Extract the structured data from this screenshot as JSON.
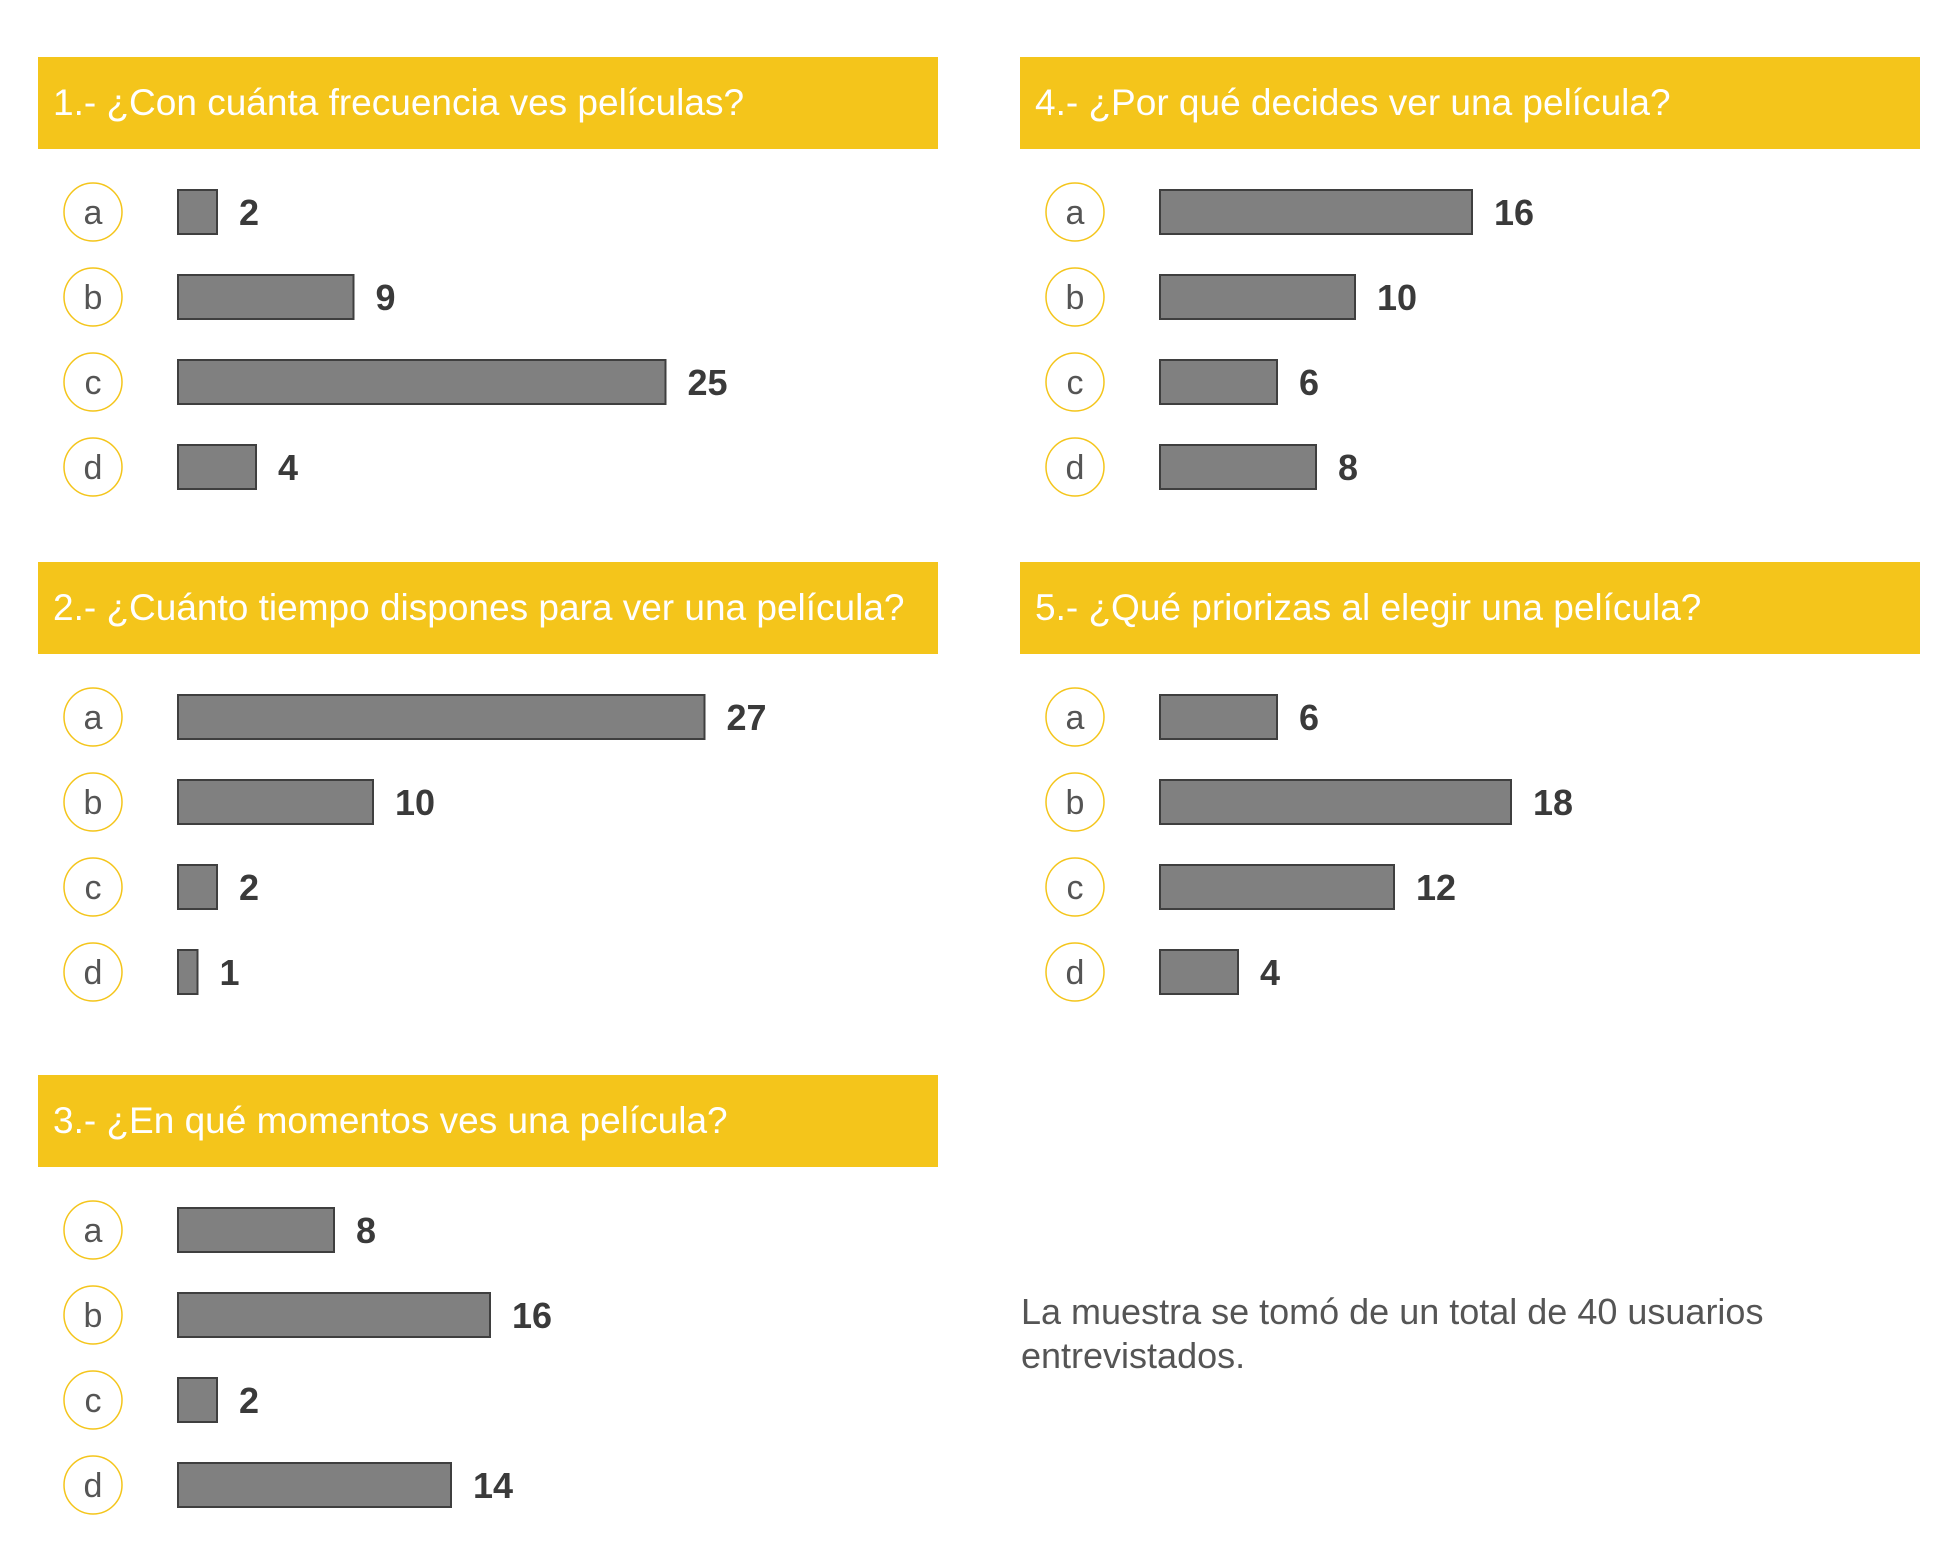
{
  "chart_data": [
    {
      "type": "bar",
      "title": "1.- ¿Con cuánta frecuencia ves películas?",
      "categories": [
        "a",
        "b",
        "c",
        "d"
      ],
      "values": [
        2,
        9,
        25,
        4
      ]
    },
    {
      "type": "bar",
      "title": "2.- ¿Cuánto tiempo dispones para ver una película?",
      "categories": [
        "a",
        "b",
        "c",
        "d"
      ],
      "values": [
        27,
        10,
        2,
        1
      ]
    },
    {
      "type": "bar",
      "title": "3.- ¿En qué momentos ves una película?",
      "categories": [
        "a",
        "b",
        "c",
        "d"
      ],
      "values": [
        8,
        16,
        2,
        14
      ]
    },
    {
      "type": "bar",
      "title": "4.- ¿Por qué decides ver una película?",
      "categories": [
        "a",
        "b",
        "c",
        "d"
      ],
      "values": [
        16,
        10,
        6,
        8
      ]
    },
    {
      "type": "bar",
      "title": "5.- ¿Qué priorizas al elegir una película?",
      "categories": [
        "a",
        "b",
        "c",
        "d"
      ],
      "values": [
        6,
        18,
        12,
        4
      ]
    }
  ],
  "note": "La muestra se tomó de un total de 40 usuarios entrevistados.",
  "colors": {
    "header": "#f4c51b",
    "bar_fill": "#808080",
    "bar_stroke": "#3f3f3f",
    "value_text": "#3a3a3a",
    "circle_stroke": "#f4c51b"
  }
}
